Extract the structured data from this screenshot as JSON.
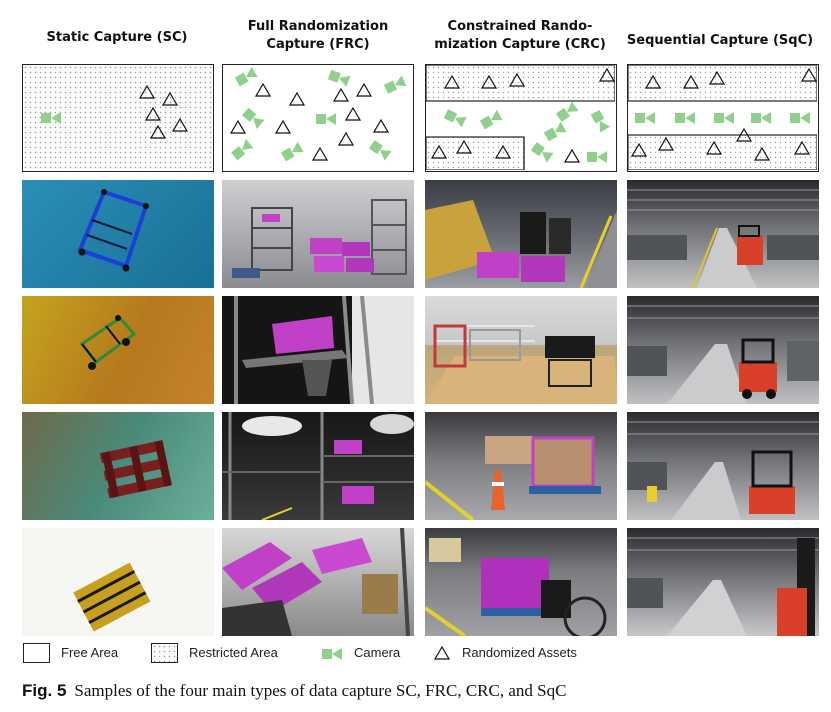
{
  "columns": [
    {
      "title_lines": [
        "Static Capture (SC)"
      ]
    },
    {
      "title_lines": [
        "Full Randomization",
        "Capture (FRC)"
      ]
    },
    {
      "title_lines": [
        "Constrained Rando-",
        "mization Capture (CRC)"
      ]
    },
    {
      "title_lines": [
        "Sequential Capture (SqC)"
      ]
    }
  ],
  "legend": {
    "free_area": "Free Area",
    "restricted_area": "Restricted Area",
    "camera": "Camera",
    "randomized_assets": "Randomized Assets"
  },
  "caption": {
    "label": "Fig. 5",
    "text": "Samples of the four main types of data capture SC, FRC, CRC, and SqC"
  },
  "colors": {
    "camera_green": "#8fd18b",
    "sc_blue_bg": "#1f84ad",
    "sc_wood_bg": "#b8901e",
    "sc_green_bg": "#4f9c8a",
    "sc_white_bg": "#f6f6f2",
    "magenta_crate": "#c040c8",
    "forklift_red": "#d8402a"
  }
}
